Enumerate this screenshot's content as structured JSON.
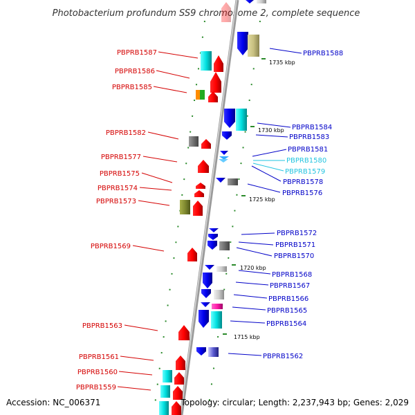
{
  "title": "Photobacterium profundum SS9 chromosome 2, complete sequence",
  "accession": "Accession: NC_006371",
  "topology": "Topology: circular; Length: 2,237,943 bp; Genes: 2,029",
  "colors": {
    "forward_label": "#d40000",
    "reverse_label": "#0000c8",
    "highlight_label": "#22c4e0",
    "backbone": "#999999",
    "tick": "#2a8a2a"
  },
  "scale_labels": [
    {
      "id": "1735",
      "text": "1735 kbp"
    },
    {
      "id": "1730",
      "text": "1730 kbp"
    },
    {
      "id": "1725",
      "text": "1725 kbp"
    },
    {
      "id": "1720",
      "text": "1720 kbp"
    },
    {
      "id": "1715",
      "text": "1715 kbp"
    }
  ],
  "genes_left": [
    {
      "id": "PBPRB1587",
      "label": "PBPRB1587"
    },
    {
      "id": "PBPRB1586",
      "label": "PBPRB1586"
    },
    {
      "id": "PBPRB1585",
      "label": "PBPRB1585"
    },
    {
      "id": "PBPRB1582",
      "label": "PBPRB1582"
    },
    {
      "id": "PBPRB1577",
      "label": "PBPRB1577"
    },
    {
      "id": "PBPRB1575",
      "label": "PBPRB1575"
    },
    {
      "id": "PBPRB1574",
      "label": "PBPRB1574"
    },
    {
      "id": "PBPRB1573",
      "label": "PBPRB1573"
    },
    {
      "id": "PBPRB1569",
      "label": "PBPRB1569"
    },
    {
      "id": "PBPRB1563",
      "label": "PBPRB1563"
    },
    {
      "id": "PBPRB1561",
      "label": "PBPRB1561"
    },
    {
      "id": "PBPRB1560",
      "label": "PBPRB1560"
    },
    {
      "id": "PBPRB1559",
      "label": "PBPRB1559"
    }
  ],
  "genes_right": [
    {
      "id": "PBPRB1588",
      "label": "PBPRB1588"
    },
    {
      "id": "PBPRB1584",
      "label": "PBPRB1584"
    },
    {
      "id": "PBPRB1583",
      "label": "PBPRB1583"
    },
    {
      "id": "PBPRB1581",
      "label": "PBPRB1581"
    },
    {
      "id": "PBPRB1580",
      "label": "PBPRB1580"
    },
    {
      "id": "PBPRB1579",
      "label": "PBPRB1579"
    },
    {
      "id": "PBPRB1578",
      "label": "PBPRB1578"
    },
    {
      "id": "PBPRB1576",
      "label": "PBPRB1576"
    },
    {
      "id": "PBPRB1572",
      "label": "PBPRB1572"
    },
    {
      "id": "PBPRB1571",
      "label": "PBPRB1571"
    },
    {
      "id": "PBPRB1570",
      "label": "PBPRB1570"
    },
    {
      "id": "PBPRB1568",
      "label": "PBPRB1568"
    },
    {
      "id": "PBPRB1567",
      "label": "PBPRB1567"
    },
    {
      "id": "PBPRB1566",
      "label": "PBPRB1566"
    },
    {
      "id": "PBPRB1565",
      "label": "PBPRB1565"
    },
    {
      "id": "PBPRB1564",
      "label": "PBPRB1564"
    },
    {
      "id": "PBPRB1562",
      "label": "PBPRB1562"
    }
  ]
}
